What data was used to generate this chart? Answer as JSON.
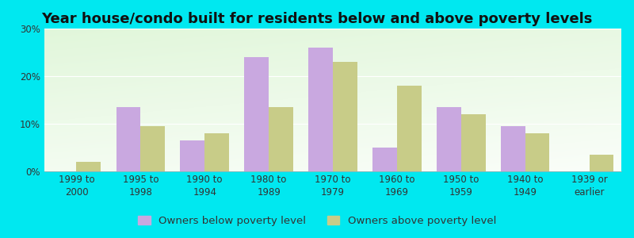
{
  "title": "Year house/condo built for residents below and above poverty levels",
  "categories": [
    "1999 to\n2000",
    "1995 to\n1998",
    "1990 to\n1994",
    "1980 to\n1989",
    "1970 to\n1979",
    "1960 to\n1969",
    "1950 to\n1959",
    "1940 to\n1949",
    "1939 or\nearlier"
  ],
  "below_poverty": [
    0.0,
    13.5,
    6.5,
    24.0,
    26.0,
    5.0,
    13.5,
    9.5,
    0.0
  ],
  "above_poverty": [
    2.0,
    9.5,
    8.0,
    13.5,
    23.0,
    18.0,
    12.0,
    8.0,
    3.5
  ],
  "below_color": "#c9a8e0",
  "above_color": "#c8cc88",
  "below_label": "Owners below poverty level",
  "above_label": "Owners above poverty level",
  "ylim": [
    0,
    30
  ],
  "yticks": [
    0,
    10,
    20,
    30
  ],
  "yticklabels": [
    "0%",
    "10%",
    "20%",
    "30%"
  ],
  "outer_bg": "#00e8f0",
  "title_fontsize": 13,
  "legend_fontsize": 9.5,
  "tick_fontsize": 8.5,
  "bar_width": 0.38
}
